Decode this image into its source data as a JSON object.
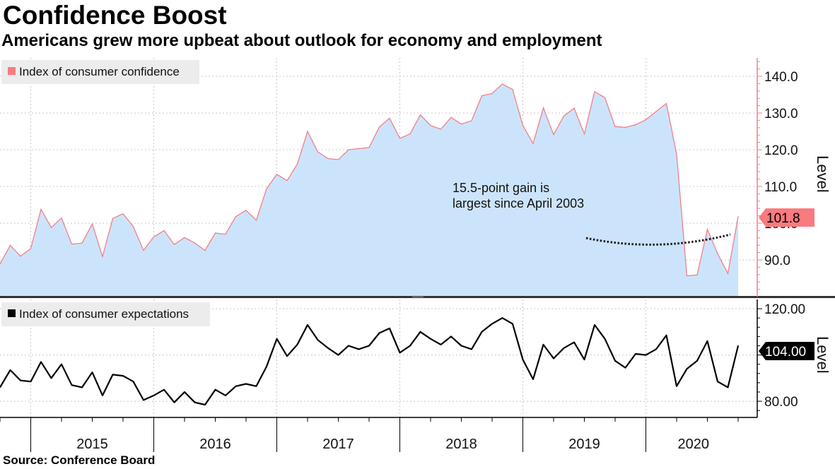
{
  "title": "Confidence Boost",
  "subtitle": "Americans grew more upbeat about outlook for economy and employment",
  "source": "Source: Conference Board",
  "colors": {
    "confidence_area": "#cce4fb",
    "confidence_line": "#f0808a",
    "confidence_badge": "#f97a7f",
    "expectations_line": "#000000",
    "expectations_badge": "#000000",
    "legend_bg": "#ececec",
    "grid": "#c8c8c8",
    "trend_dots": "#1a1a1a"
  },
  "chart_data": [
    {
      "type": "area",
      "panel": "top",
      "legend": "Index of consumer confidence",
      "ylabel": "Level",
      "ylim": [
        80,
        145
      ],
      "yticks": [
        90.0,
        100.0,
        110.0,
        120.0,
        130.0,
        140.0
      ],
      "ytick_labels": [
        "90.0",
        "100.0",
        "110.0",
        "120.0",
        "130.0",
        "140.0"
      ],
      "last_value_label": "101.8",
      "x_start": "2014-06",
      "series": [
        {
          "name": "Index of consumer confidence",
          "values": [
            88.9,
            94.0,
            91.0,
            93.1,
            103.8,
            98.8,
            101.4,
            94.3,
            94.6,
            99.8,
            90.9,
            101.3,
            102.6,
            99.1,
            92.6,
            96.3,
            98.0,
            94.2,
            96.1,
            94.6,
            92.6,
            97.3,
            97.0,
            101.8,
            103.5,
            100.8,
            109.4,
            113.3,
            111.6,
            116.1,
            125.0,
            119.4,
            117.6,
            117.3,
            120.0,
            120.3,
            120.6,
            126.2,
            128.6,
            123.1,
            124.3,
            129.5,
            126.6,
            125.6,
            128.8,
            127.0,
            127.9,
            134.7,
            135.3,
            137.9,
            136.4,
            126.6,
            121.7,
            131.4,
            124.1,
            129.2,
            131.3,
            124.3,
            135.8,
            134.2,
            126.3,
            126.1,
            126.8,
            128.2,
            130.4,
            132.6,
            118.8,
            85.7,
            85.9,
            98.3,
            91.7,
            86.3,
            101.8
          ]
        }
      ],
      "annotation": {
        "lines": [
          "15.5-point gain is",
          "largest since April 2003"
        ]
      }
    },
    {
      "type": "line",
      "panel": "bottom",
      "legend": "Index of consumer expectations",
      "ylabel": "Level",
      "ylim": [
        73,
        124
      ],
      "yticks": [
        80.0,
        100.0,
        120.0
      ],
      "ytick_labels": [
        "80.00",
        "100.00",
        "120.00"
      ],
      "last_value_label": "104.00",
      "x_start": "2014-06",
      "series": [
        {
          "name": "Index of consumer expectations",
          "values": [
            86.0,
            93.5,
            89.0,
            88.5,
            97.0,
            90.0,
            96.0,
            87.0,
            86.0,
            92.5,
            82.5,
            91.5,
            91.0,
            88.5,
            80.5,
            82.5,
            85.0,
            79.5,
            84.0,
            79.5,
            78.5,
            85.0,
            82.5,
            86.5,
            87.5,
            86.5,
            95.0,
            107.0,
            99.5,
            104.5,
            113.0,
            106.5,
            103.0,
            100.0,
            104.0,
            102.5,
            104.0,
            109.5,
            111.5,
            101.0,
            104.0,
            110.0,
            107.0,
            104.5,
            108.0,
            104.0,
            102.5,
            110.0,
            113.5,
            116.0,
            113.5,
            98.0,
            89.5,
            104.5,
            98.5,
            103.0,
            105.5,
            98.0,
            113.0,
            107.0,
            97.5,
            94.5,
            100.5,
            100.0,
            102.5,
            108.5,
            86.5,
            94.0,
            97.5,
            106.0,
            88.5,
            86.0,
            104.0
          ]
        }
      ]
    }
  ],
  "x_axis": {
    "year_labels": [
      "2015",
      "2016",
      "2017",
      "2018",
      "2019",
      "2020"
    ]
  }
}
